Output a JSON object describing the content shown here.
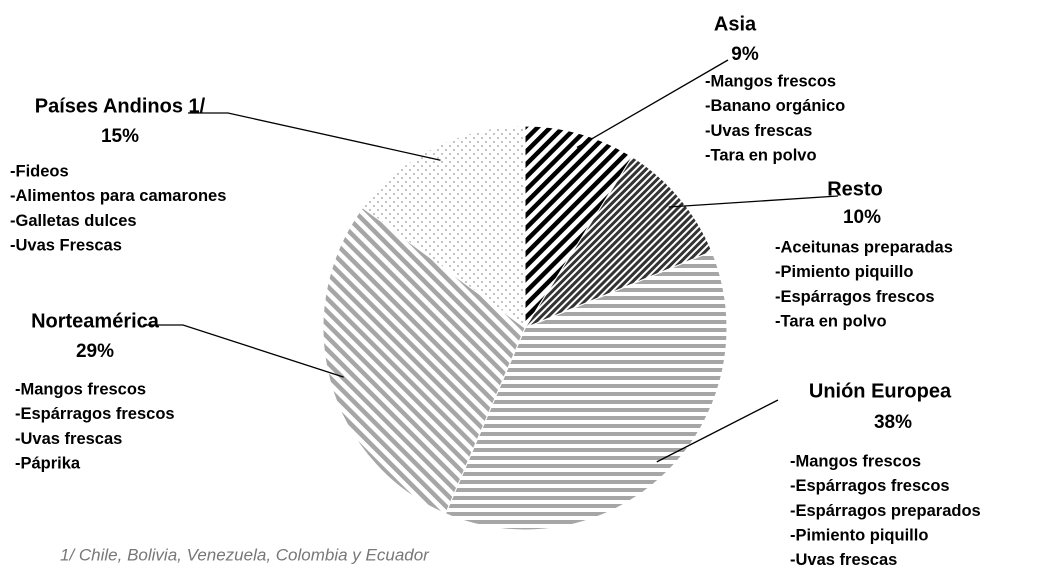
{
  "chart_data": {
    "type": "pie",
    "categories": [
      "Asia",
      "Resto",
      "Unión Europea",
      "Norteamérica",
      "Países Andinos 1/"
    ],
    "values": [
      9,
      10,
      38,
      29,
      15
    ],
    "value_labels": [
      "9%",
      "10%",
      "38%",
      "29%",
      "15%"
    ],
    "details": [
      [
        "-Mangos frescos",
        "-Banano orgánico",
        "-Uvas frescas",
        "-Tara en polvo"
      ],
      [
        "-Aceitunas preparadas",
        "-Pimiento piquillo",
        "-Espárragos frescos",
        "-Tara en polvo"
      ],
      [
        "-Mangos frescos",
        "-Espárragos frescos",
        "-Espárragos preparados",
        "-Pimiento piquillo",
        "-Uvas frescas"
      ],
      [
        "-Mangos frescos",
        "-Espárragos frescos",
        "-Uvas frescas",
        "-Páprika"
      ],
      [
        "-Fideos",
        "-Alimentos para camarones",
        "-Galletas dulces",
        "-Uvas Frescas"
      ]
    ],
    "footnote": "1/ Chile, Bolivia, Venezuela, Colombia y Ecuador"
  }
}
